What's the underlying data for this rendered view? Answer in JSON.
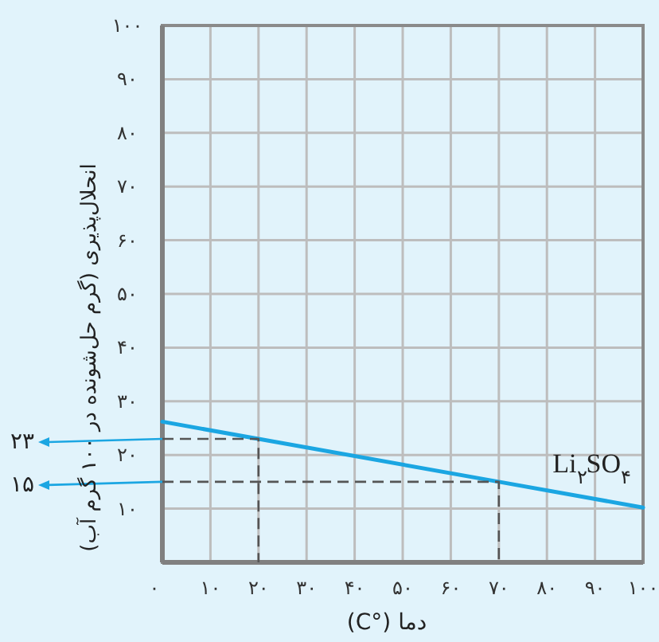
{
  "chart_data": {
    "type": "line",
    "xlabel": "دما (°C)",
    "ylabel": "انحلال‌پذیری (گرم حل‌شونده در ۱۰۰ گرم آب)",
    "x": [
      0,
      20,
      70,
      100
    ],
    "series": [
      {
        "name": "Li$_{۲}$SO$_{۴}$",
        "color": "#1ba6e2",
        "values": [
          26.2,
          23,
          15,
          10.2
        ]
      },
      {
        "color": "#555555",
        "line_style": "dashed",
        "x": [
          0,
          20,
          20
        ],
        "values": [
          23,
          23,
          0
        ]
      },
      {
        "color": "#555555",
        "line_style": "dashed",
        "x": [
          0,
          70,
          70
        ],
        "values": [
          15,
          15,
          0
        ]
      }
    ],
    "xlim": [
      0,
      100
    ],
    "ylim": [
      0,
      100
    ],
    "xticks": [
      {
        "value": 0,
        "label": "۰"
      },
      {
        "value": 10,
        "label": "۱۰"
      },
      {
        "value": 20,
        "label": "۲۰"
      },
      {
        "value": 30,
        "label": "۳۰"
      },
      {
        "value": 40,
        "label": "۴۰"
      },
      {
        "value": 50,
        "label": "۵۰"
      },
      {
        "value": 60,
        "label": "۶۰"
      },
      {
        "value": 70,
        "label": "۷۰"
      },
      {
        "value": 80,
        "label": "۸۰"
      },
      {
        "value": 90,
        "label": "۹۰"
      },
      {
        "value": 100,
        "label": "۱۰۰"
      }
    ],
    "yticks": [
      {
        "value": 10,
        "label": "۱۰"
      },
      {
        "value": 20,
        "label": "۲۰"
      },
      {
        "value": 30,
        "label": "۳۰"
      },
      {
        "value": 40,
        "label": "۴۰"
      },
      {
        "value": 50,
        "label": "۵۰"
      },
      {
        "value": 60,
        "label": "۶۰"
      },
      {
        "value": 70,
        "label": "۷۰"
      },
      {
        "value": 80,
        "label": "۸۰"
      },
      {
        "value": 90,
        "label": "۹۰"
      },
      {
        "value": 100,
        "label": "۱۰۰"
      }
    ],
    "annotations": [
      {
        "text": "۲۳",
        "x": 0,
        "y": 23
      },
      {
        "text": "۱۵",
        "x": 0,
        "y": 15
      }
    ],
    "grid": true,
    "marker": "none",
    "line_style": "solid"
  }
}
